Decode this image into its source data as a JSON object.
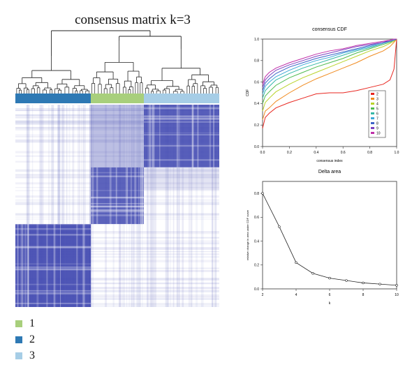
{
  "colors": {
    "cluster_1": "#a8cf7c",
    "cluster_2": "#2e79b4",
    "cluster_3": "#a6cde6",
    "heat": "#4048b0",
    "k_colors": [
      "#e8261f",
      "#f08a1e",
      "#b9d32a",
      "#4fbb4f",
      "#35b8a6",
      "#3da8d8",
      "#3d62c8",
      "#7b3fc0",
      "#c02fa8"
    ]
  },
  "matrix": {
    "title": "consensus matrix k=3",
    "cluster_fractions": [
      0.37,
      0.26,
      0.37
    ],
    "cluster_order": [
      2,
      1,
      3
    ],
    "blocks": [
      {
        "cluster": 2,
        "start": 0.0,
        "end": 0.37,
        "intensity": 0.92
      },
      {
        "cluster": 1,
        "start": 0.37,
        "end": 0.63,
        "intensity": 0.85
      },
      {
        "cluster": 3,
        "start": 0.63,
        "end": 1.0,
        "intensity": 0.88
      }
    ]
  },
  "legend": {
    "items": [
      {
        "label": "1",
        "color": "#a8cf7c"
      },
      {
        "label": "2",
        "color": "#2e79b4"
      },
      {
        "label": "3",
        "color": "#a6cde6"
      }
    ]
  },
  "chart_data": [
    {
      "type": "line",
      "title": "consensus CDF",
      "xlabel": "consensus index",
      "ylabel": "CDF",
      "xlim": [
        0,
        1
      ],
      "ylim": [
        0,
        1
      ],
      "x_ticks": [
        "0.0",
        "0.2",
        "0.4",
        "0.6",
        "0.8",
        "1.0"
      ],
      "y_ticks": [
        "0.0",
        "0.2",
        "0.4",
        "0.6",
        "0.8",
        "1.0"
      ],
      "legend_position": "right",
      "x": [
        0,
        0.02,
        0.05,
        0.1,
        0.2,
        0.3,
        0.4,
        0.5,
        0.6,
        0.7,
        0.8,
        0.9,
        0.95,
        0.98,
        1.0
      ],
      "series": [
        {
          "name": "2",
          "values": [
            0.17,
            0.27,
            0.31,
            0.36,
            0.41,
            0.45,
            0.49,
            0.5,
            0.5,
            0.52,
            0.55,
            0.58,
            0.62,
            0.72,
            1.0
          ]
        },
        {
          "name": "3",
          "values": [
            0.25,
            0.33,
            0.36,
            0.42,
            0.5,
            0.57,
            0.63,
            0.68,
            0.73,
            0.78,
            0.84,
            0.89,
            0.93,
            0.97,
            1.0
          ]
        },
        {
          "name": "4",
          "values": [
            0.33,
            0.41,
            0.45,
            0.51,
            0.58,
            0.64,
            0.69,
            0.74,
            0.79,
            0.84,
            0.89,
            0.93,
            0.96,
            0.98,
            1.0
          ]
        },
        {
          "name": "5",
          "values": [
            0.4,
            0.47,
            0.51,
            0.57,
            0.64,
            0.69,
            0.74,
            0.78,
            0.82,
            0.87,
            0.91,
            0.95,
            0.97,
            0.99,
            1.0
          ]
        },
        {
          "name": "6",
          "values": [
            0.45,
            0.52,
            0.56,
            0.62,
            0.68,
            0.73,
            0.77,
            0.81,
            0.85,
            0.89,
            0.92,
            0.96,
            0.98,
            0.99,
            1.0
          ]
        },
        {
          "name": "7",
          "values": [
            0.49,
            0.56,
            0.6,
            0.65,
            0.71,
            0.76,
            0.8,
            0.83,
            0.87,
            0.9,
            0.93,
            0.96,
            0.98,
            0.99,
            1.0
          ]
        },
        {
          "name": "8",
          "values": [
            0.52,
            0.59,
            0.63,
            0.68,
            0.74,
            0.78,
            0.82,
            0.85,
            0.88,
            0.91,
            0.94,
            0.97,
            0.98,
            0.99,
            1.0
          ]
        },
        {
          "name": "9",
          "values": [
            0.55,
            0.62,
            0.66,
            0.71,
            0.76,
            0.8,
            0.84,
            0.87,
            0.9,
            0.93,
            0.95,
            0.97,
            0.99,
            1.0,
            1.0
          ]
        },
        {
          "name": "10",
          "values": [
            0.58,
            0.65,
            0.69,
            0.73,
            0.78,
            0.82,
            0.86,
            0.89,
            0.91,
            0.94,
            0.96,
            0.98,
            0.99,
            1.0,
            1.0
          ]
        }
      ]
    },
    {
      "type": "line",
      "title": "Delta area",
      "xlabel": "k",
      "ylabel": "relative change in area under CDF curve",
      "xlim": [
        2,
        10
      ],
      "ylim": [
        0,
        0.9
      ],
      "x_ticks": [
        "2",
        "4",
        "6",
        "8",
        "10"
      ],
      "y_ticks": [
        "0.0",
        "0.2",
        "0.4",
        "0.6",
        "0.8"
      ],
      "x": [
        2,
        3,
        4,
        5,
        6,
        7,
        8,
        9,
        10
      ],
      "series": [
        {
          "values": [
            0.8,
            0.52,
            0.22,
            0.13,
            0.09,
            0.07,
            0.05,
            0.04,
            0.03
          ]
        }
      ]
    }
  ]
}
